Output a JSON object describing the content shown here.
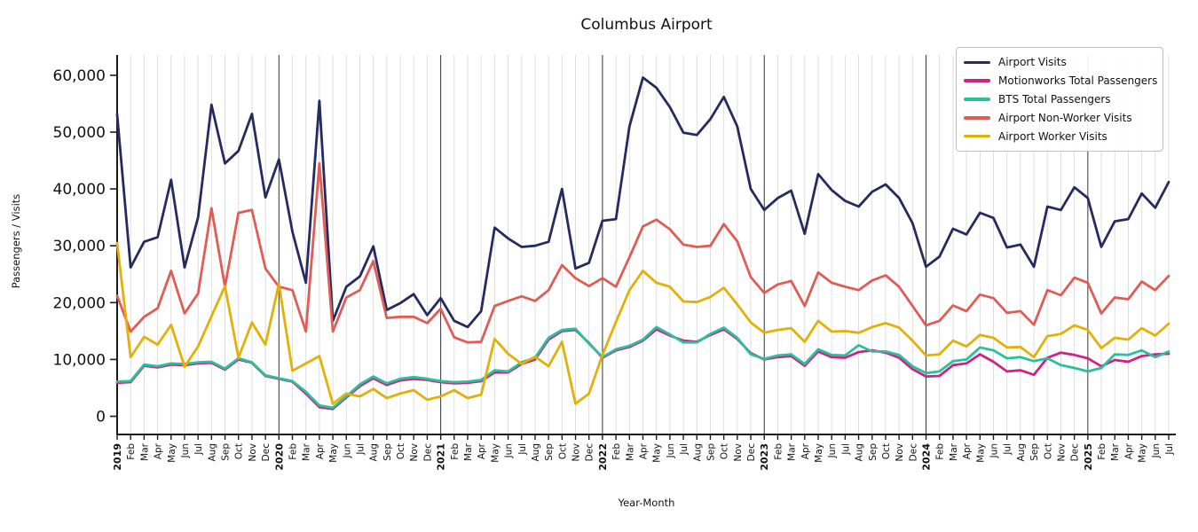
{
  "chart_data": {
    "type": "line",
    "title": "Columbus Airport",
    "xlabel": "Year-Month",
    "ylabel": "Passengers / Visits",
    "legend_position": "upper right",
    "grid": {
      "vertical_month_gridlines": true,
      "dark_year_boundary_lines": true,
      "horizontal_gridlines": false
    },
    "ylim": [
      0,
      62000
    ],
    "y_ticks": [
      {
        "value": 0,
        "label": "0"
      },
      {
        "value": 10000,
        "label": "10,000"
      },
      {
        "value": 20000,
        "label": "20,000"
      },
      {
        "value": 30000,
        "label": "30,000"
      },
      {
        "value": 40000,
        "label": "40,000"
      },
      {
        "value": 50000,
        "label": "50,000"
      },
      {
        "value": 60000,
        "label": "60,000"
      }
    ],
    "x_tick_labels": [
      "2019",
      "Feb",
      "Mar",
      "Apr",
      "May",
      "Jun",
      "Jul",
      "Aug",
      "Sep",
      "Oct",
      "Nov",
      "Dec",
      "2020",
      "Feb",
      "Mar",
      "Apr",
      "May",
      "Jun",
      "Jul",
      "Aug",
      "Sep",
      "Oct",
      "Nov",
      "Dec",
      "2021",
      "Feb",
      "Mar",
      "Apr",
      "May",
      "Jun",
      "Jul",
      "Aug",
      "Sep",
      "Oct",
      "Nov",
      "Dec",
      "2022",
      "Feb",
      "Mar",
      "Apr",
      "May",
      "Jun",
      "Jul",
      "Aug",
      "Sep",
      "Oct",
      "Nov",
      "Dec",
      "2023",
      "Feb",
      "Mar",
      "Apr",
      "May",
      "Jun",
      "Jul",
      "Aug",
      "Sep",
      "Oct",
      "Nov",
      "Dec",
      "2024",
      "Feb",
      "Mar",
      "Apr",
      "May",
      "Jun",
      "Jul",
      "Aug",
      "Sep",
      "Oct",
      "Nov",
      "Dec",
      "2025",
      "Feb",
      "Mar",
      "Apr",
      "May",
      "Jun",
      "Jul"
    ],
    "series": [
      {
        "name": "Airport Visits",
        "color": "#252b5e",
        "values": [
          53100,
          26200,
          30700,
          31500,
          41600,
          26200,
          35000,
          54800,
          44500,
          46700,
          53200,
          38500,
          45200,
          32500,
          23500,
          55500,
          16800,
          22800,
          24600,
          29900,
          18700,
          19900,
          21500,
          17800,
          20800,
          16800,
          15700,
          18500,
          33200,
          31300,
          29800,
          30000,
          30700,
          40000,
          26000,
          27000,
          34400,
          34700,
          51000,
          59600,
          57800,
          54400,
          49900,
          49500,
          52300,
          56200,
          51000,
          40000,
          36300,
          38400,
          39700,
          32100,
          42600,
          39800,
          37900,
          36900,
          39500,
          40800,
          38400,
          34000,
          26300,
          28100,
          33000,
          32000,
          35800,
          34900,
          29700,
          30200,
          26300,
          36900,
          36300,
          40300,
          38400,
          29800,
          34300,
          34700,
          39200,
          36700,
          41200
        ]
      },
      {
        "name": "Motionworks Total Passengers",
        "color": "#cf2287",
        "values": [
          5900,
          6000,
          8900,
          8600,
          9100,
          9000,
          9300,
          9400,
          8200,
          10000,
          9400,
          7100,
          6600,
          6100,
          4000,
          1600,
          1300,
          3300,
          5300,
          6700,
          5500,
          6300,
          6600,
          6400,
          6000,
          5800,
          5900,
          6200,
          7700,
          7700,
          9200,
          10000,
          13500,
          15000,
          15200,
          12900,
          10300,
          11600,
          12200,
          13300,
          15300,
          14200,
          13300,
          13100,
          14300,
          15300,
          13600,
          11100,
          10000,
          10400,
          10600,
          8900,
          11400,
          10400,
          10300,
          11300,
          11600,
          11200,
          10300,
          8300,
          7000,
          7100,
          9000,
          9300,
          10900,
          9600,
          7900,
          8100,
          7300,
          10300,
          11200,
          10800,
          10200,
          8800,
          9900,
          9600,
          10600,
          10900,
          11000
        ]
      },
      {
        "name": "BTS Total Passengers",
        "color": "#29c09c",
        "values": [
          6100,
          6200,
          9100,
          8800,
          9300,
          9200,
          9500,
          9600,
          8400,
          10200,
          9500,
          7200,
          6700,
          6200,
          4300,
          1900,
          1500,
          3500,
          5600,
          7000,
          5800,
          6600,
          6900,
          6600,
          6200,
          6000,
          6100,
          6400,
          8100,
          7900,
          9500,
          10300,
          13800,
          15200,
          15400,
          12800,
          10400,
          11800,
          12400,
          13500,
          15700,
          14400,
          13000,
          13000,
          14500,
          15600,
          13800,
          10900,
          10100,
          10700,
          10900,
          9200,
          11800,
          10800,
          10700,
          12500,
          11400,
          11400,
          10800,
          8800,
          7600,
          7900,
          9700,
          10000,
          12100,
          11600,
          10200,
          10400,
          9700,
          10200,
          9000,
          8500,
          7900,
          8500,
          10900,
          10800,
          11600,
          10400,
          11400
        ]
      },
      {
        "name": "Airport Non-Worker Visits",
        "color": "#e05c55",
        "values": [
          21200,
          14900,
          17500,
          19000,
          25600,
          18100,
          21600,
          36600,
          22800,
          35800,
          36300,
          26000,
          22800,
          22200,
          14900,
          44500,
          14900,
          20900,
          22200,
          27300,
          17300,
          17500,
          17500,
          16400,
          18900,
          13900,
          13000,
          13100,
          19400,
          20300,
          21100,
          20300,
          22200,
          26600,
          24300,
          22900,
          24300,
          22800,
          28000,
          33400,
          34600,
          32900,
          30200,
          29800,
          30000,
          33800,
          30800,
          24500,
          21700,
          23200,
          23800,
          19400,
          25300,
          23500,
          22800,
          22200,
          23900,
          24800,
          22800,
          19400,
          16000,
          16800,
          19500,
          18500,
          21400,
          20800,
          18200,
          18500,
          16100,
          22200,
          21300,
          24400,
          23500,
          18100,
          20900,
          20600,
          23700,
          22200,
          24700
        ]
      },
      {
        "name": "Airport Worker Visits",
        "color": "#e2b007",
        "values": [
          30500,
          10400,
          14000,
          12600,
          16100,
          8700,
          12300,
          17600,
          22900,
          10300,
          16500,
          12600,
          23300,
          8000,
          9300,
          10600,
          2200,
          4000,
          3500,
          4800,
          3200,
          4000,
          4600,
          2900,
          3500,
          4600,
          3200,
          3800,
          13600,
          11000,
          9200,
          10500,
          8800,
          13100,
          2200,
          4000,
          10800,
          16600,
          22200,
          25600,
          23500,
          22800,
          20200,
          20100,
          21000,
          22600,
          19700,
          16500,
          14700,
          15200,
          15500,
          13100,
          16800,
          14900,
          15000,
          14700,
          15700,
          16400,
          15600,
          13300,
          10700,
          10900,
          13300,
          12300,
          14300,
          13800,
          12100,
          12200,
          10400,
          14100,
          14500,
          16000,
          15200,
          12000,
          13800,
          13500,
          15500,
          14200,
          16300
        ]
      }
    ]
  }
}
